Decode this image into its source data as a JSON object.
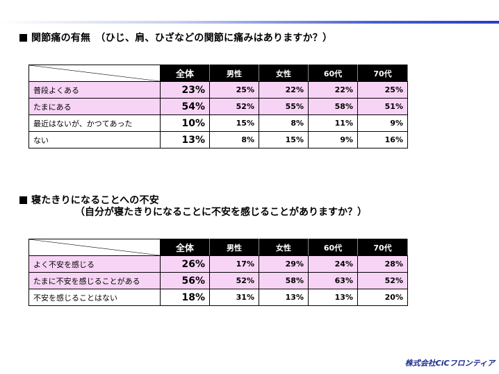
{
  "section1": {
    "title": "関節痛の有無　（ひじ、肩、ひざなどの関節に痛みはありますか？）",
    "headers": [
      "全体",
      "男性",
      "女性",
      "60代",
      "70代"
    ],
    "rows": [
      {
        "label": "普段よくある",
        "values": [
          "23%",
          "25%",
          "22%",
          "22%",
          "25%"
        ]
      },
      {
        "label": "たまにある",
        "values": [
          "54%",
          "52%",
          "55%",
          "58%",
          "51%"
        ]
      },
      {
        "label": "最近はないが、かつてあった",
        "values": [
          "10%",
          "15%",
          "8%",
          "11%",
          "9%"
        ]
      },
      {
        "label": "ない",
        "values": [
          "13%",
          "8%",
          "15%",
          "9%",
          "16%"
        ]
      }
    ]
  },
  "section2": {
    "title": "寝たきりになることへの不安",
    "subtitle": "（自分が寝たきりになることに不安を感じることがありますか？）",
    "headers": [
      "全体",
      "男性",
      "女性",
      "60代",
      "70代"
    ],
    "rows": [
      {
        "label": "よく不安を感じる",
        "values": [
          "26%",
          "17%",
          "29%",
          "24%",
          "28%"
        ]
      },
      {
        "label": "たまに不安を感じることがある",
        "values": [
          "56%",
          "52%",
          "58%",
          "63%",
          "52%"
        ]
      },
      {
        "label": "不安を感じることはない",
        "values": [
          "18%",
          "31%",
          "13%",
          "13%",
          "20%"
        ]
      }
    ]
  },
  "logo": "株式会社CiCフロンティア",
  "colors": {
    "pink_row": "#f7d4f5",
    "header_bg": "#000000",
    "logo": "#1c2a8c"
  }
}
